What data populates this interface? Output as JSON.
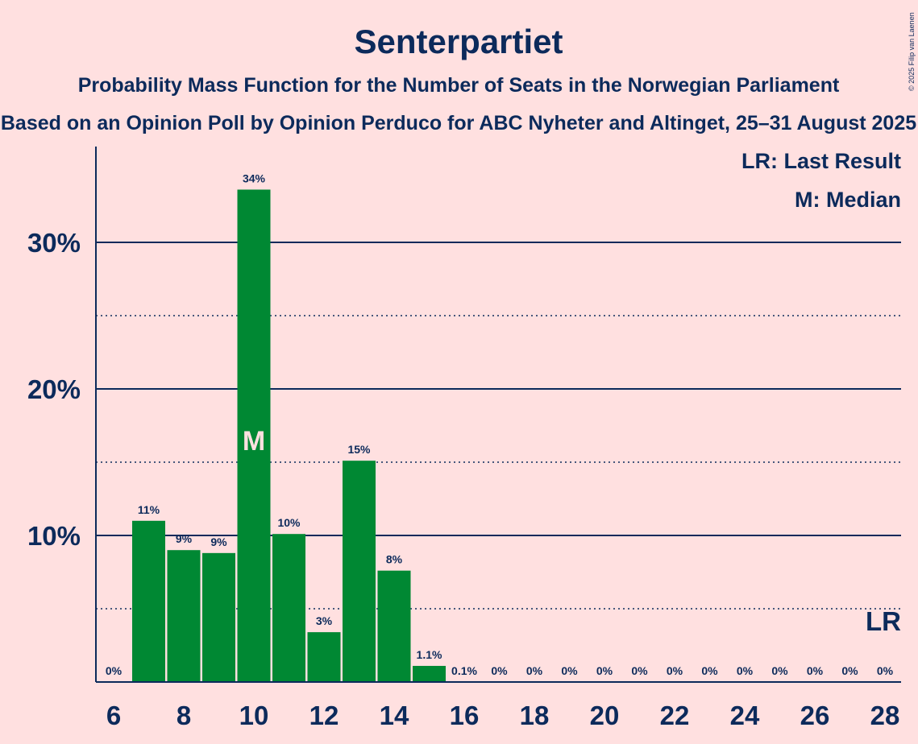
{
  "chart_data": {
    "type": "bar",
    "title": "Senterpartiet",
    "subtitle": "Probability Mass Function for the Number of Seats in the Norwegian Parliament",
    "subtitle2": "Based on an Opinion Poll by Opinion Perduco for ABC Nyheter and Altinget, 25–31 August 2025",
    "copyright": "© 2025 Filip van Laenen",
    "legend": {
      "last_result": "LR: Last Result",
      "median": "M: Median"
    },
    "median_marker": "M",
    "last_result_marker": "LR",
    "median_seat": 10,
    "last_result_seat": 28,
    "x": [
      6,
      7,
      8,
      9,
      10,
      11,
      12,
      13,
      14,
      15,
      16,
      17,
      18,
      19,
      20,
      21,
      22,
      23,
      24,
      25,
      26,
      27,
      28
    ],
    "values": [
      0,
      11.0,
      9.0,
      8.8,
      33.6,
      10.1,
      3.4,
      15.1,
      7.6,
      1.1,
      0.1,
      0,
      0,
      0,
      0,
      0,
      0,
      0,
      0,
      0,
      0,
      0,
      0
    ],
    "data_labels": [
      "0%",
      "11%",
      "9%",
      "9%",
      "34%",
      "10%",
      "3%",
      "15%",
      "8%",
      "1.1%",
      "0.1%",
      "0%",
      "0%",
      "0%",
      "0%",
      "0%",
      "0%",
      "0%",
      "0%",
      "0%",
      "0%",
      "0%",
      "0%"
    ],
    "x_ticks": [
      6,
      8,
      10,
      12,
      14,
      16,
      18,
      20,
      22,
      24,
      26,
      28
    ],
    "y_ticks": [
      {
        "value": 10,
        "label": "10%"
      },
      {
        "value": 20,
        "label": "20%"
      },
      {
        "value": 30,
        "label": "30%"
      }
    ],
    "y_minor_gridlines": [
      5,
      15,
      25
    ],
    "ylim": [
      0,
      36
    ],
    "xlabel": "",
    "ylabel": "",
    "colors": {
      "background": "#ffe0e0",
      "bar": "#008833",
      "text": "#0c2a5b",
      "grid": "#0c2a5b",
      "median_text": "#ffe0e0"
    }
  }
}
